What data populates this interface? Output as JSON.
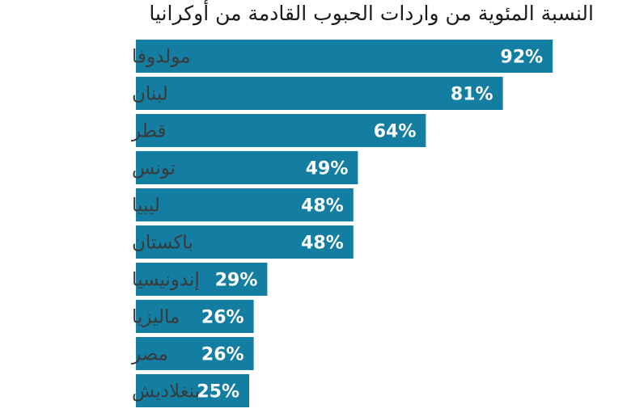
{
  "chart_data": {
    "type": "bar",
    "orientation": "horizontal",
    "title": "النسبة المئوية من واردات الحبوب القادمة من أوكرانيا",
    "categories": [
      "مولدوفا",
      "لبنان",
      "قطر",
      "تونس",
      "ليبيا",
      "باكستان",
      "إندونيسيا",
      "ماليزيا",
      "مصر",
      "بنغلاديش"
    ],
    "values": [
      92,
      81,
      64,
      49,
      48,
      48,
      29,
      26,
      26,
      25
    ],
    "value_labels": [
      "92%",
      "81%",
      "64%",
      "49%",
      "48%",
      "48%",
      "29%",
      "26%",
      "26%",
      "25%"
    ],
    "bar_color": "#137ea2",
    "value_label_color": "#ffffff",
    "xlim": [
      0,
      100
    ],
    "grid": false,
    "legend": "none",
    "xlabel": "",
    "ylabel": ""
  }
}
